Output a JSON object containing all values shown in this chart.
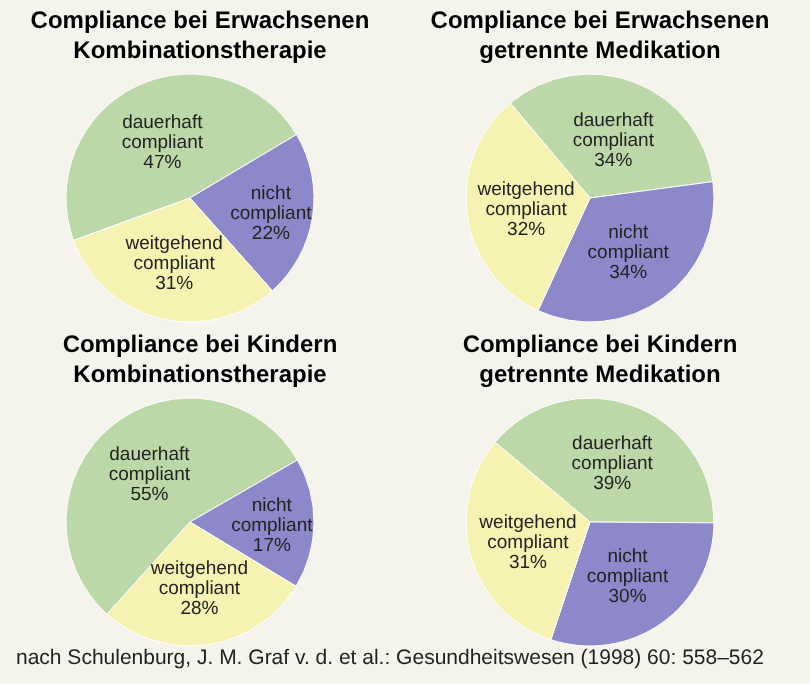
{
  "chart_data": [
    {
      "type": "pie",
      "title": "Compliance bei Erwachsenen",
      "subtitle": "Kombinationstherapie",
      "categories": [
        "dauerhaft compliant",
        "nicht compliant",
        "weitgehend compliant"
      ],
      "values": [
        47,
        22,
        31
      ],
      "value_labels": [
        "47%",
        "22%",
        "31%"
      ],
      "colors": [
        "#bcd8a8",
        "#8c88c9",
        "#f6f2b2"
      ]
    },
    {
      "type": "pie",
      "title": "Compliance bei Erwachsenen",
      "subtitle": "getrennte Medikation",
      "categories": [
        "dauerhaft compliant",
        "nicht compliant",
        "weitgehend compliant"
      ],
      "values": [
        34,
        34,
        32
      ],
      "value_labels": [
        "34%",
        "34%",
        "32%"
      ],
      "colors": [
        "#bcd8a8",
        "#8c88c9",
        "#f6f2b2"
      ]
    },
    {
      "type": "pie",
      "title": "Compliance bei Kindern",
      "subtitle": "Kombinationstherapie",
      "categories": [
        "dauerhaft compliant",
        "nicht compliant",
        "weitgehend compliant"
      ],
      "values": [
        55,
        17,
        28
      ],
      "value_labels": [
        "55%",
        "17%",
        "28%"
      ],
      "colors": [
        "#bcd8a8",
        "#8c88c9",
        "#f6f2b2"
      ]
    },
    {
      "type": "pie",
      "title": "Compliance bei Kindern",
      "subtitle": "getrennte Medikation",
      "categories": [
        "dauerhaft compliant",
        "nicht compliant",
        "weitgehend compliant"
      ],
      "values": [
        39,
        30,
        31
      ],
      "value_labels": [
        "39%",
        "30%",
        "31%"
      ],
      "colors": [
        "#bcd8a8",
        "#8c88c9",
        "#f6f2b2"
      ],
      "annotations": [
        "nach Schulenburg, J. M. Graf v. d. et al.: Gesundheitswesen (1998) 60: 558–562"
      ]
    }
  ]
}
